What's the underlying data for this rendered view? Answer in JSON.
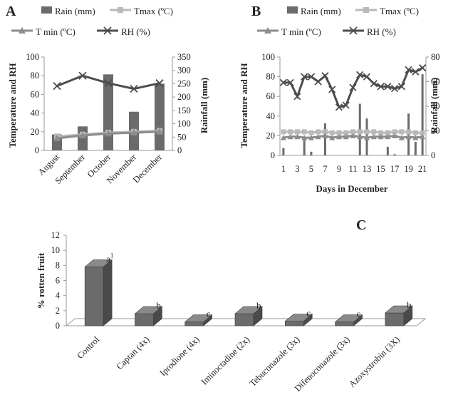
{
  "colors": {
    "bar": "#6b6b6b",
    "bar_dark": "#4a4a4a",
    "bar_light": "#8a8a8a",
    "tmax": "#b9b9b9",
    "tmin": "#8c8c8c",
    "rh": "#4d4d4d",
    "axis": "#9a9a9a"
  },
  "legend": {
    "rain": "Rain (mm)",
    "tmax": "Tmax (ºC)",
    "tmin": "T min (ºC)",
    "rh": "RH (%)"
  },
  "chart_data": [
    {
      "panel": "A",
      "type": "bar+line",
      "categories": [
        "August",
        "September",
        "October",
        "November",
        "December"
      ],
      "ylabel": "Temperature and RH",
      "y2label": "Rainfall (mm)",
      "ylim": [
        0,
        100
      ],
      "y2lim": [
        0,
        350
      ],
      "yticks": [
        0,
        20,
        40,
        60,
        80,
        100
      ],
      "y2ticks": [
        0,
        50,
        100,
        150,
        200,
        250,
        300,
        350
      ],
      "series": [
        {
          "name": "Rain (mm)",
          "axis": "right",
          "kind": "bar",
          "values": [
            60,
            90,
            285,
            145,
            250
          ]
        },
        {
          "name": "Tmax (ºC)",
          "axis": "left",
          "kind": "line",
          "values": [
            15,
            17,
            19,
            20,
            21
          ]
        },
        {
          "name": "T min (ºC)",
          "axis": "left",
          "kind": "line",
          "values": [
            13,
            16,
            18,
            19,
            20
          ]
        },
        {
          "name": "RH (%)",
          "axis": "left",
          "kind": "line",
          "values": [
            69,
            80,
            72,
            66,
            72
          ]
        }
      ]
    },
    {
      "panel": "B",
      "type": "bar+line",
      "xlabel": "Days in December",
      "ylabel": "Temperature and RH",
      "y2label": "Rainfall (mm)",
      "x": [
        1,
        2,
        3,
        4,
        5,
        6,
        7,
        8,
        9,
        10,
        11,
        12,
        13,
        14,
        15,
        16,
        17,
        18,
        19,
        20,
        21
      ],
      "xticks": [
        1,
        3,
        5,
        7,
        9,
        11,
        13,
        15,
        17,
        19,
        21
      ],
      "ylim": [
        0,
        100
      ],
      "y2lim": [
        0,
        80
      ],
      "yticks": [
        0,
        20,
        40,
        60,
        80,
        100
      ],
      "y2ticks": [
        0,
        20,
        40,
        60,
        80
      ],
      "series": [
        {
          "name": "Rain (mm)",
          "axis": "right",
          "kind": "bar",
          "values": [
            6,
            0,
            0,
            14,
            3,
            0,
            26,
            0,
            0,
            0,
            0,
            42,
            30,
            0,
            0,
            7,
            1,
            0,
            34,
            11,
            66
          ]
        },
        {
          "name": "Tmax (ºC)",
          "axis": "left",
          "kind": "line",
          "values": [
            24,
            24,
            24,
            24,
            23,
            24,
            24,
            23,
            23,
            23,
            24,
            24,
            24,
            24,
            23,
            23,
            24,
            24,
            24,
            23,
            23
          ]
        },
        {
          "name": "T min (ºC)",
          "axis": "left",
          "kind": "line",
          "values": [
            18,
            19,
            19,
            18,
            18,
            19,
            20,
            18,
            19,
            19,
            20,
            19,
            18,
            19,
            19,
            19,
            20,
            18,
            19,
            18,
            19
          ]
        },
        {
          "name": "RH (%)",
          "axis": "left",
          "kind": "line",
          "values": [
            74,
            74,
            60,
            80,
            80,
            75,
            81,
            67,
            49,
            51,
            69,
            82,
            80,
            73,
            70,
            70,
            68,
            70,
            87,
            85,
            89
          ]
        }
      ]
    },
    {
      "panel": "C",
      "type": "bar",
      "categories": [
        "Control",
        "Captan (4x)",
        "Iprodione (4x)",
        "Iminoctadine (2x)",
        "Tebuconazole (3x)",
        "Difenoconazole (3x)",
        "Azoxystrobin (3X)"
      ],
      "values": [
        7.8,
        1.6,
        0.5,
        1.6,
        0.6,
        0.5,
        1.7
      ],
      "labels": [
        "a",
        "b",
        "c",
        "b",
        "c",
        "c",
        "b"
      ],
      "label_superscript_first": "1",
      "ylabel": "% rotten fruit",
      "ylim": [
        0,
        12
      ],
      "yticks": [
        0,
        2,
        4,
        6,
        8,
        10,
        12
      ]
    }
  ]
}
